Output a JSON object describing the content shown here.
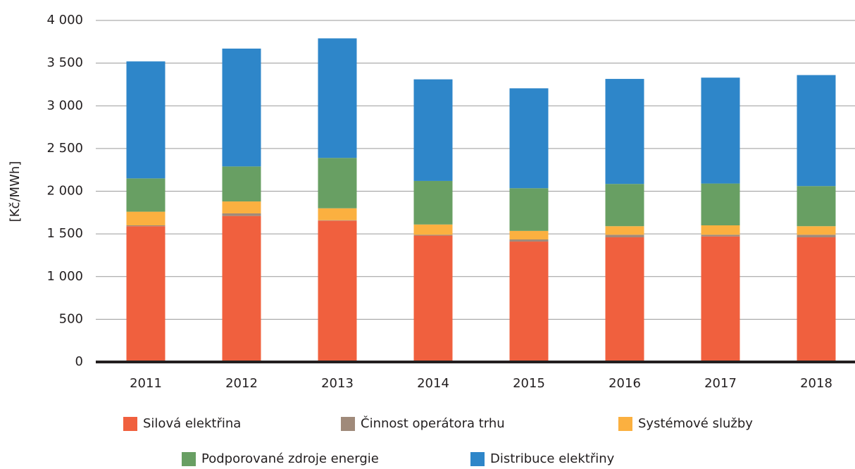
{
  "chart_data": {
    "type": "bar",
    "stacked": true,
    "y_axis_label": "[Kč/MWh]",
    "categories": [
      "2011",
      "2012",
      "2013",
      "2014",
      "2015",
      "2016",
      "2017",
      "2018"
    ],
    "series": [
      {
        "name": "Silová elektřina",
        "color": "#f0603e",
        "values": [
          1590,
          1710,
          1655,
          1480,
          1410,
          1460,
          1470,
          1460
        ]
      },
      {
        "name": "Činnost operátora trhu",
        "color": "#a08a7a",
        "values": [
          10,
          30,
          5,
          10,
          25,
          30,
          20,
          30
        ]
      },
      {
        "name": "Systémové služby",
        "color": "#fbb040",
        "values": [
          160,
          140,
          140,
          120,
          100,
          100,
          110,
          100
        ]
      },
      {
        "name": "Podporované zdroje energie",
        "color": "#689f63",
        "values": [
          390,
          410,
          590,
          510,
          500,
          495,
          490,
          470
        ]
      },
      {
        "name": "Distribuce elektřiny",
        "color": "#2e86c9",
        "values": [
          1370,
          1380,
          1400,
          1190,
          1170,
          1230,
          1240,
          1300
        ]
      }
    ],
    "ylim": [
      0,
      4000
    ],
    "yticks": [
      0,
      500,
      {
        "value": 1000,
        "label": "1 000"
      },
      {
        "value": 1500,
        "label": "1 500"
      },
      {
        "value": 2000,
        "label": "2 000"
      },
      {
        "value": 2500,
        "label": "2 500"
      },
      {
        "value": 3000,
        "label": "3 000"
      },
      {
        "value": 3500,
        "label": "3 500"
      },
      {
        "value": 4000,
        "label": "4 000"
      }
    ],
    "grid": true
  }
}
